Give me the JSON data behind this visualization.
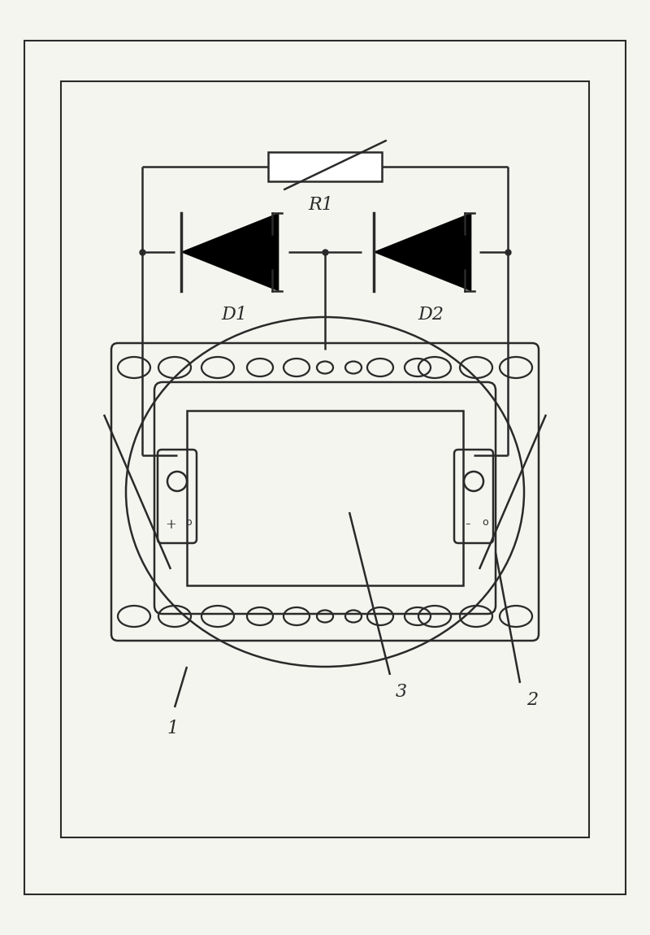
{
  "bg_color": "#f5f5f0",
  "line_color": "#2a2a2a",
  "R1_label": "R1",
  "D1_label": "D1",
  "D2_label": "D2",
  "label1": "1",
  "label2": "2",
  "label3": "3"
}
